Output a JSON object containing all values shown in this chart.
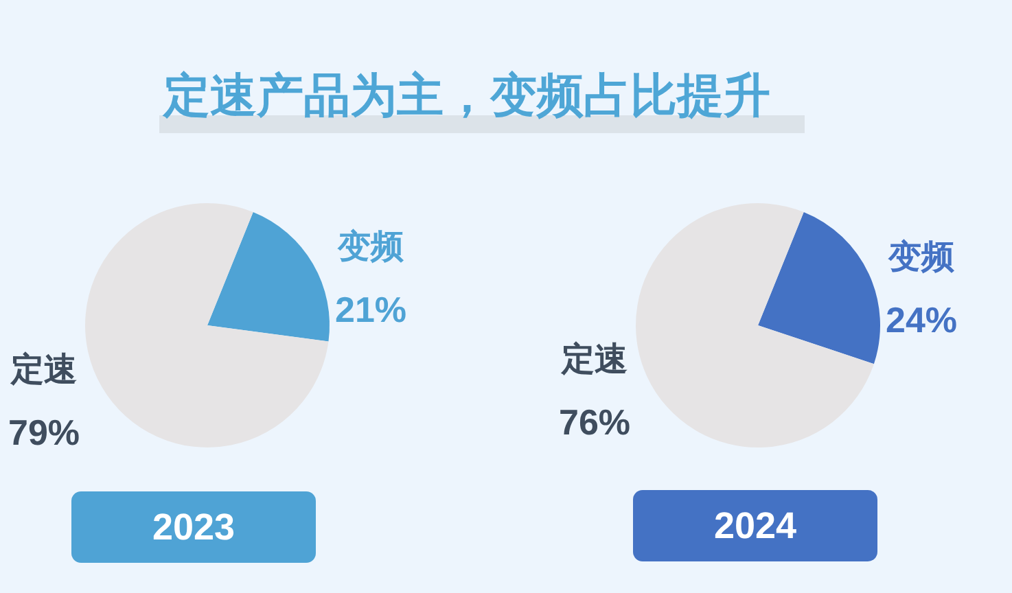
{
  "chart_data": [
    {
      "type": "pie",
      "title": "定速产品为主，变频占比提升",
      "xlabel": "2023",
      "categories": [
        "变频",
        "定速"
      ],
      "values": [
        21,
        79
      ],
      "colors": [
        "#4fa3d5",
        "#e6e4e5"
      ],
      "value_labels": [
        "21%",
        "79%"
      ]
    },
    {
      "type": "pie",
      "xlabel": "2024",
      "categories": [
        "变频",
        "定速"
      ],
      "values": [
        24,
        76
      ],
      "colors": [
        "#4472c4",
        "#e6e4e5"
      ],
      "value_labels": [
        "24%",
        "76%"
      ]
    }
  ]
}
